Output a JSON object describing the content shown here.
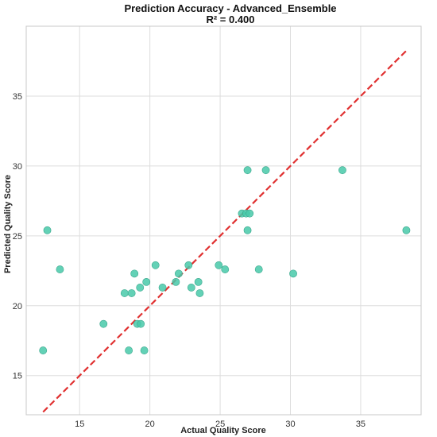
{
  "chart_data": {
    "type": "scatter",
    "title": "Prediction Accuracy - Advanced_Ensemble",
    "subtitle": "R² = 0.400",
    "xlabel": "Actual Quality Score",
    "ylabel": "Predicted Quality Score",
    "xlim": [
      11.2,
      39.3
    ],
    "ylim": [
      12.2,
      40.0
    ],
    "xticks": [
      15,
      20,
      25,
      30,
      35
    ],
    "yticks": [
      15,
      20,
      25,
      30,
      35
    ],
    "grid": true,
    "points": [
      {
        "x": 12.4,
        "y": 16.8
      },
      {
        "x": 12.7,
        "y": 25.4
      },
      {
        "x": 13.6,
        "y": 22.6
      },
      {
        "x": 16.7,
        "y": 18.7
      },
      {
        "x": 18.2,
        "y": 20.9
      },
      {
        "x": 18.5,
        "y": 16.8
      },
      {
        "x": 18.7,
        "y": 20.9
      },
      {
        "x": 18.9,
        "y": 22.3
      },
      {
        "x": 19.1,
        "y": 18.7
      },
      {
        "x": 19.3,
        "y": 21.3
      },
      {
        "x": 19.35,
        "y": 18.7
      },
      {
        "x": 19.6,
        "y": 16.8
      },
      {
        "x": 19.75,
        "y": 21.7
      },
      {
        "x": 20.4,
        "y": 22.9
      },
      {
        "x": 20.9,
        "y": 21.3
      },
      {
        "x": 21.85,
        "y": 21.7
      },
      {
        "x": 22.05,
        "y": 22.3
      },
      {
        "x": 22.75,
        "y": 22.9
      },
      {
        "x": 22.95,
        "y": 21.3
      },
      {
        "x": 23.45,
        "y": 21.7
      },
      {
        "x": 23.55,
        "y": 20.9
      },
      {
        "x": 24.9,
        "y": 22.9
      },
      {
        "x": 25.35,
        "y": 22.6
      },
      {
        "x": 26.55,
        "y": 26.6
      },
      {
        "x": 26.85,
        "y": 26.6
      },
      {
        "x": 26.95,
        "y": 29.7
      },
      {
        "x": 26.95,
        "y": 25.4
      },
      {
        "x": 27.1,
        "y": 26.6
      },
      {
        "x": 27.75,
        "y": 22.6
      },
      {
        "x": 28.25,
        "y": 29.7
      },
      {
        "x": 30.2,
        "y": 22.3
      },
      {
        "x": 33.7,
        "y": 29.7
      },
      {
        "x": 38.25,
        "y": 25.4
      }
    ],
    "reference_line": {
      "x": [
        12.4,
        38.3
      ],
      "y": [
        12.4,
        38.3
      ],
      "style": "dashed"
    },
    "colors": {
      "point": "#48c9a9",
      "point_edge": "#3aa78c",
      "reference_line": "#e03030",
      "grid": "#dddddd",
      "frame": "#c8c8c8"
    }
  }
}
